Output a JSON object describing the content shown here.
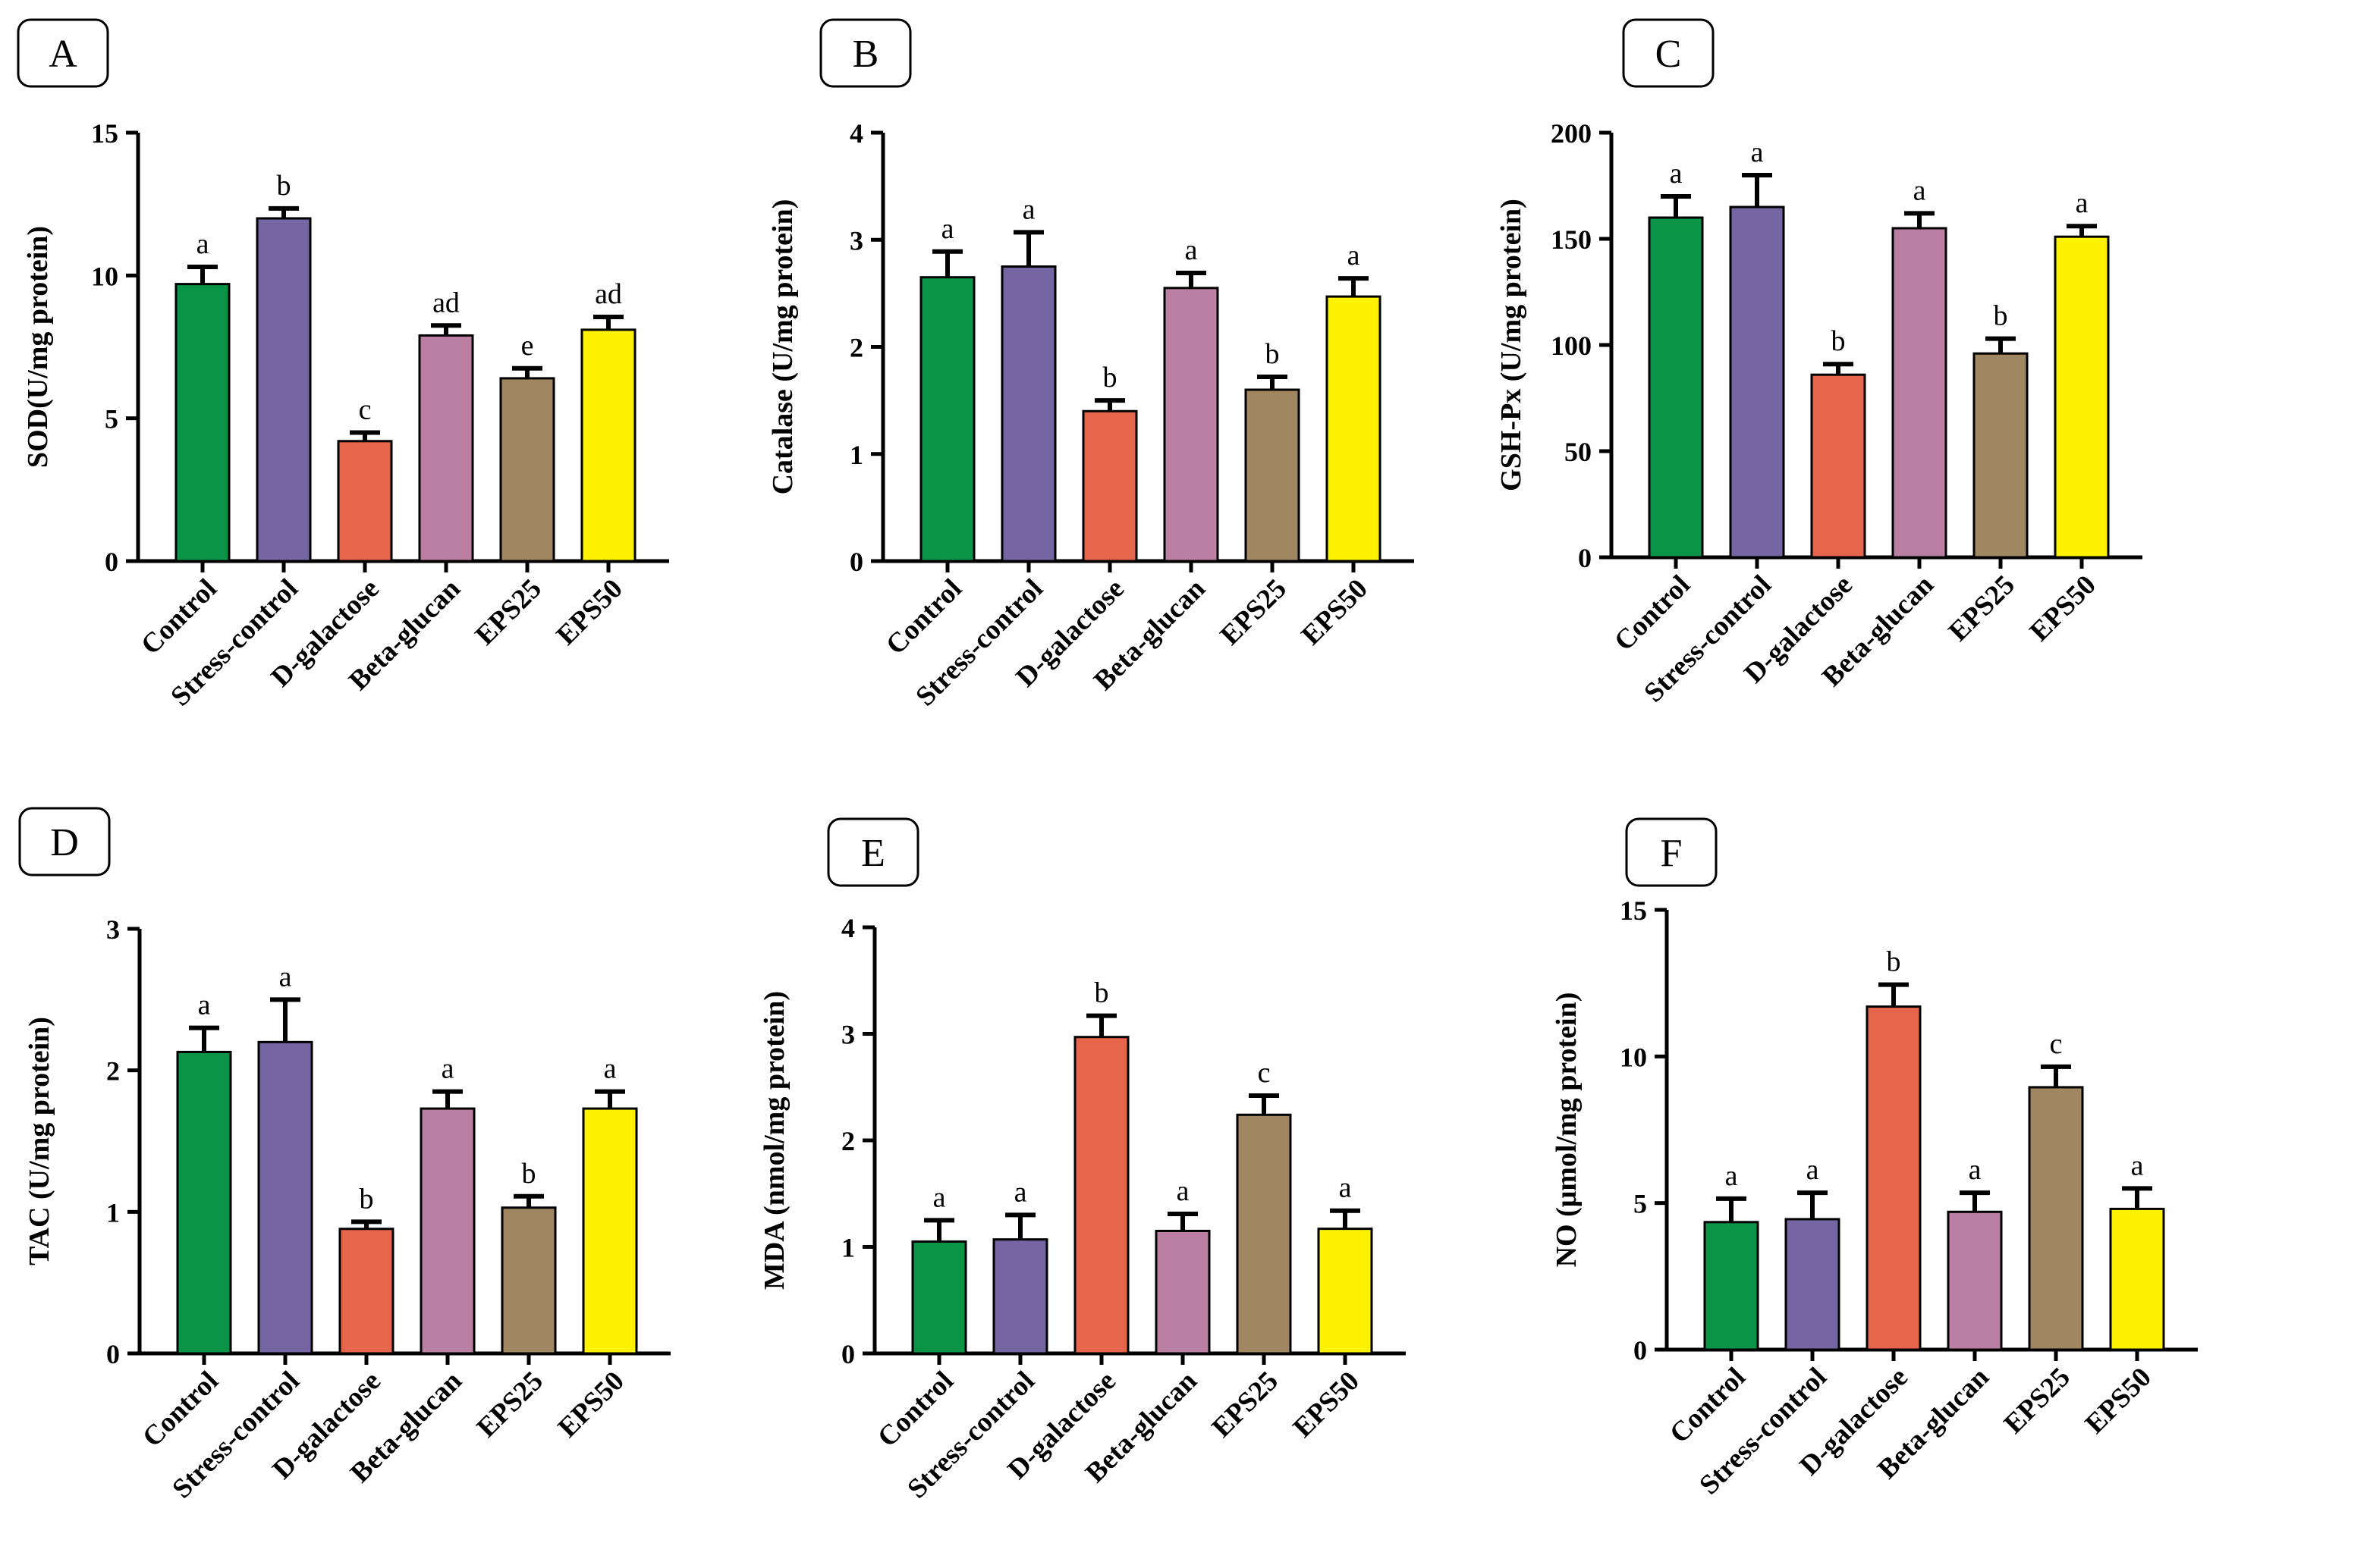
{
  "colors": [
    "#0a9447",
    "#7565a2",
    "#e6664c",
    "#ba7fa3",
    "#a08761",
    "#fef200"
  ],
  "chart_data": [
    {
      "panel": "A",
      "type": "bar",
      "categories": [
        "Control",
        "Stress-control",
        "D-galactose",
        "Beta-glucan",
        "EPS25",
        "EPS50"
      ],
      "values": [
        9.7,
        12.0,
        4.2,
        7.9,
        6.4,
        8.1
      ],
      "errors": [
        0.6,
        0.35,
        0.3,
        0.35,
        0.35,
        0.45
      ],
      "significance": [
        "a",
        "b",
        "c",
        "ad",
        "e",
        "ad"
      ],
      "ylabel": "SOD(U/mg protein)",
      "ylim": [
        0,
        15
      ],
      "yticks": [
        0,
        5,
        10,
        15
      ]
    },
    {
      "panel": "B",
      "type": "bar",
      "categories": [
        "Control",
        "Stress-control",
        "D-galactose",
        "Beta-glucan",
        "EPS25",
        "EPS50"
      ],
      "values": [
        2.65,
        2.75,
        1.4,
        2.55,
        1.6,
        2.47
      ],
      "errors": [
        0.24,
        0.32,
        0.1,
        0.14,
        0.12,
        0.17
      ],
      "significance": [
        "a",
        "a",
        "b",
        "a",
        "b",
        "a"
      ],
      "ylabel": "Catalase (U/mg protein)",
      "ylim": [
        0,
        4
      ],
      "yticks": [
        0,
        1,
        2,
        3,
        4
      ]
    },
    {
      "panel": "C",
      "type": "bar",
      "categories": [
        "Control",
        "Stress-control",
        "D-galactose",
        "Beta-glucan",
        "EPS25",
        "EPS50"
      ],
      "values": [
        160,
        165,
        86,
        155,
        96,
        151
      ],
      "errors": [
        10,
        15,
        5,
        7,
        7,
        5
      ],
      "significance": [
        "a",
        "a",
        "b",
        "a",
        "b",
        "a"
      ],
      "ylabel": "GSH-Px (U/mg protein)",
      "ylim": [
        0,
        200
      ],
      "yticks": [
        0,
        50,
        100,
        150,
        200
      ]
    },
    {
      "panel": "D",
      "type": "bar",
      "categories": [
        "Control",
        "Stress-control",
        "D-galactose",
        "Beta-glucan",
        "EPS25",
        "EPS50"
      ],
      "values": [
        2.13,
        2.2,
        0.88,
        1.73,
        1.03,
        1.73
      ],
      "errors": [
        0.17,
        0.3,
        0.05,
        0.12,
        0.08,
        0.12
      ],
      "significance": [
        "a",
        "a",
        "b",
        "a",
        "b",
        "a"
      ],
      "ylabel": "TAC (U/mg protein)",
      "ylim": [
        0,
        3
      ],
      "yticks": [
        0,
        1,
        2,
        3
      ]
    },
    {
      "panel": "E",
      "type": "bar",
      "categories": [
        "Control",
        "Stress-control",
        "D-galactose",
        "Beta-glucan",
        "EPS25",
        "EPS50"
      ],
      "values": [
        1.05,
        1.07,
        2.97,
        1.15,
        2.24,
        1.17
      ],
      "errors": [
        0.2,
        0.23,
        0.2,
        0.16,
        0.18,
        0.17
      ],
      "significance": [
        "a",
        "a",
        "b",
        "a",
        "c",
        "a"
      ],
      "ylabel": "MDA (nmol/mg protein)",
      "ylim": [
        0,
        4
      ],
      "yticks": [
        0,
        1,
        2,
        3,
        4
      ]
    },
    {
      "panel": "F",
      "type": "bar",
      "categories": [
        "Control",
        "Stress-control",
        "D-galactose",
        "Beta-glucan",
        "EPS25",
        "EPS50"
      ],
      "values": [
        4.35,
        4.45,
        11.7,
        4.7,
        8.95,
        4.8
      ],
      "errors": [
        0.8,
        0.9,
        0.75,
        0.65,
        0.7,
        0.7
      ],
      "significance": [
        "a",
        "a",
        "b",
        "a",
        "c",
        "a"
      ],
      "ylabel": "NO (μmol/mg protein)",
      "ylim": [
        0,
        15
      ],
      "yticks": [
        0,
        5,
        10,
        15
      ]
    }
  ]
}
